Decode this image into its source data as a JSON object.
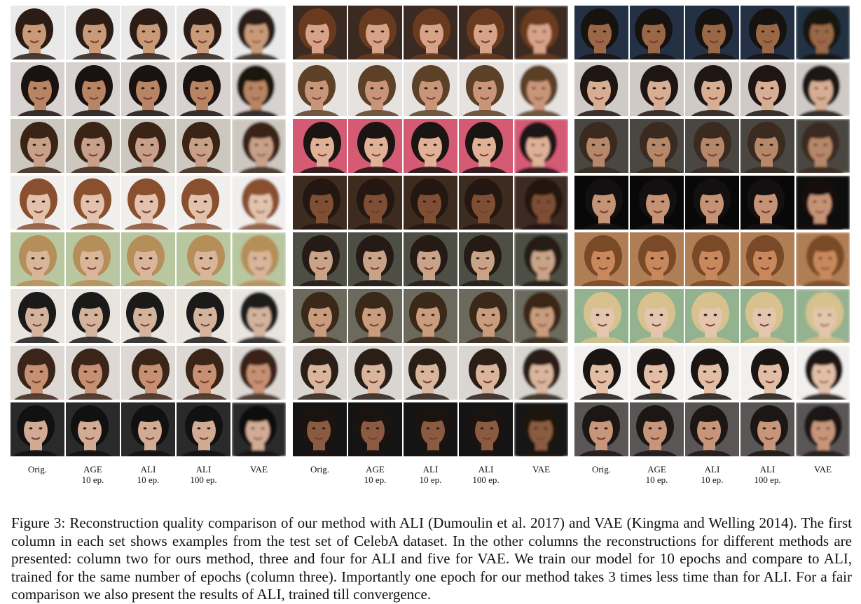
{
  "figure": {
    "column_labels": [
      {
        "line1": "Orig.",
        "line2": ""
      },
      {
        "line1": "AGE",
        "line2": "10 ep."
      },
      {
        "line1": "ALI",
        "line2": "10 ep."
      },
      {
        "line1": "ALI",
        "line2": "100 ep."
      },
      {
        "line1": "VAE",
        "line2": ""
      }
    ],
    "panels": [
      {
        "rows": [
          {
            "skin": "#c99a78",
            "hair": "#2b1d16",
            "bg": "#e9e9e9"
          },
          {
            "skin": "#b88463",
            "hair": "#1a1210",
            "bg": "#d7d2cf"
          },
          {
            "skin": "#c8a089",
            "hair": "#3a2416",
            "bg": "#cdc8bf"
          },
          {
            "skin": "#e2c2ac",
            "hair": "#8a4f2e",
            "bg": "#f1efed"
          },
          {
            "skin": "#d9b599",
            "hair": "#b48f59",
            "bg": "#b8c7a0"
          },
          {
            "skin": "#d3b39c",
            "hair": "#1a1a1a",
            "bg": "#e9e4de"
          },
          {
            "skin": "#c79073",
            "hair": "#3b2418",
            "bg": "#ddd8d4"
          },
          {
            "skin": "#d2ab94",
            "hair": "#111111",
            "bg": "#2a2a2a"
          }
        ]
      },
      {
        "rows": [
          {
            "skin": "#d7a388",
            "hair": "#6a3a1f",
            "bg": "#3b2a22"
          },
          {
            "skin": "#c99578",
            "hair": "#5c4028",
            "bg": "#e5e2df"
          },
          {
            "skin": "#e0b197",
            "hair": "#1a1412",
            "bg": "#d55a74"
          },
          {
            "skin": "#7e4e35",
            "hair": "#241610",
            "bg": "#3e2b20"
          },
          {
            "skin": "#c9a387",
            "hair": "#251a15",
            "bg": "#4d4f45"
          },
          {
            "skin": "#c89c7d",
            "hair": "#3a2819",
            "bg": "#6b6a5d"
          },
          {
            "skin": "#dab59d",
            "hair": "#2a1e17",
            "bg": "#d9d5d0"
          },
          {
            "skin": "#8a5b41",
            "hair": "#1b130f",
            "bg": "#141414"
          }
        ]
      },
      {
        "rows": [
          {
            "skin": "#9a6847",
            "hair": "#161210",
            "bg": "#243043"
          },
          {
            "skin": "#d7ad93",
            "hair": "#1f1613",
            "bg": "#cfcac5"
          },
          {
            "skin": "#b58869",
            "hair": "#3b2a20",
            "bg": "#4a4641"
          },
          {
            "skin": "#c49375",
            "hair": "#151010",
            "bg": "#080808"
          },
          {
            "skin": "#c8885c",
            "hair": "#7a4a28",
            "bg": "#b07e55"
          },
          {
            "skin": "#e3c6ad",
            "hair": "#d7c28f",
            "bg": "#93b28f"
          },
          {
            "skin": "#e3bea7",
            "hair": "#1a1412",
            "bg": "#f2f0ee"
          },
          {
            "skin": "#c7957a",
            "hair": "#1c1614",
            "bg": "#5a5656"
          }
        ]
      }
    ]
  },
  "caption": "Figure 3: Reconstruction quality comparison of our method with ALI (Dumoulin et al. 2017) and VAE (Kingma and Welling 2014). The first column in each set shows examples from the test set of CelebA dataset. In the other columns the reconstructions for different methods are presented: column two for ours method, three and four for ALI and five for VAE. We train our model for 10 epochs and compare to ALI, trained for the same number of epochs (column three). Importantly one epoch for our method takes 3 times less time than for ALI. For a fair comparison we also present the results of ALI, trained till convergence."
}
